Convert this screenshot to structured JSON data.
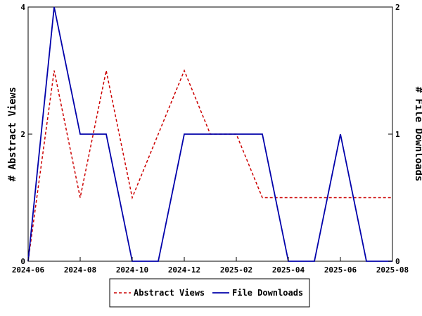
{
  "chart_data": {
    "type": "line",
    "title": "",
    "x": [
      "2024-06",
      "2024-07",
      "2024-08",
      "2024-09",
      "2024-10",
      "2024-11",
      "2024-12",
      "2025-01",
      "2025-02",
      "2025-03",
      "2025-04",
      "2025-05",
      "2025-06",
      "2025-07",
      "2025-08"
    ],
    "x_ticks": [
      "2024-06",
      "2024-08",
      "2024-10",
      "2024-12",
      "2025-02",
      "2025-04",
      "2025-06",
      "2025-08"
    ],
    "xlim": [
      "2024-06",
      "2025-08"
    ],
    "ylabel_left": "# Abstract Views",
    "ylabel_right": "# File Downloads",
    "ylim_left": [
      0,
      4
    ],
    "ylim_right": [
      0,
      2
    ],
    "yticks_left": [
      "0",
      "2",
      "4"
    ],
    "yticks_right": [
      "0",
      "1",
      "2"
    ],
    "grid": false,
    "legend_position": "bottom",
    "series": [
      {
        "name": "Abstract Views",
        "axis": "left",
        "color": "#cc0000",
        "style": "dashed",
        "values": [
          0,
          3,
          1,
          3,
          1,
          2,
          3,
          2,
          2,
          1,
          1,
          1,
          1,
          1,
          1
        ]
      },
      {
        "name": "File Downloads",
        "axis": "right",
        "color": "#0000aa",
        "style": "solid",
        "values": [
          0,
          2,
          1,
          1,
          0,
          0,
          1,
          1,
          1,
          1,
          0,
          0,
          1,
          0,
          0
        ]
      }
    ]
  }
}
